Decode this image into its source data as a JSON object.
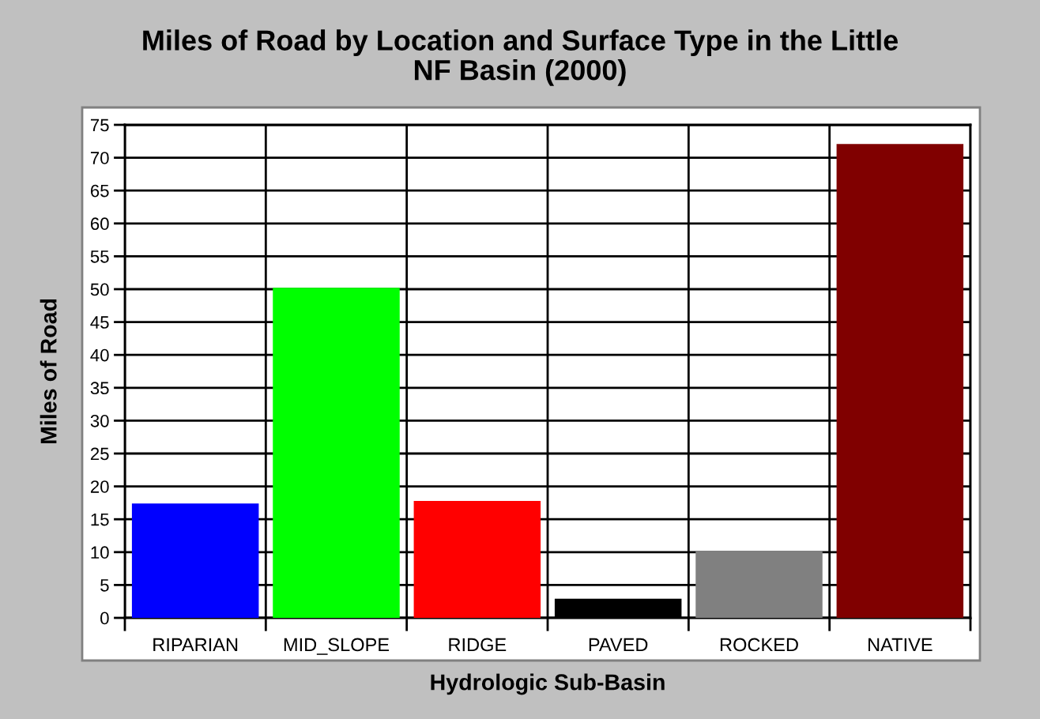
{
  "chart_data": {
    "type": "bar",
    "title": "Miles of Road by Location and Surface Type in the Little\nNF Basin (2000)",
    "xlabel": "Hydrologic Sub-Basin",
    "ylabel": "Miles of Road",
    "categories": [
      "RIPARIAN",
      "MID_SLOPE",
      "RIDGE",
      "PAVED",
      "ROCKED",
      "NATIVE"
    ],
    "values": [
      17.4,
      50.2,
      17.8,
      2.9,
      10.1,
      72.1
    ],
    "colors": [
      "#0000ff",
      "#00ff00",
      "#ff0000",
      "#000000",
      "#808080",
      "#800000"
    ],
    "ylim": [
      0,
      75
    ],
    "yticks": [
      0,
      5,
      10,
      15,
      20,
      25,
      30,
      35,
      40,
      45,
      50,
      55,
      60,
      65,
      70,
      75
    ],
    "grid": true
  }
}
